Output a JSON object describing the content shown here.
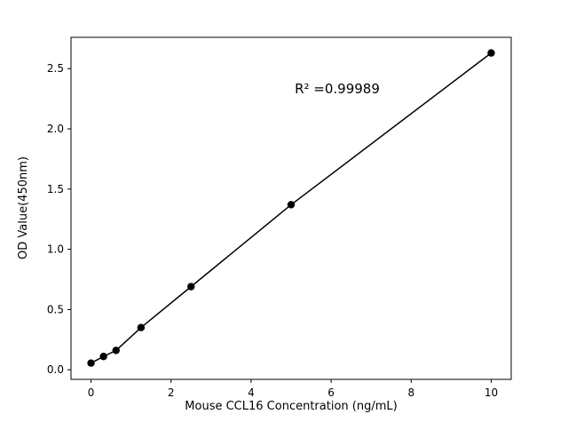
{
  "figure": {
    "background": "#ffffff"
  },
  "chart_data": {
    "type": "scatter",
    "x": [
      0,
      0.3125,
      0.625,
      1.25,
      2.5,
      5,
      10
    ],
    "y": [
      0.055,
      0.11,
      0.16,
      0.35,
      0.69,
      1.37,
      2.63
    ],
    "line": true,
    "line_color": "#000000",
    "marker_color": "#000000",
    "title": "",
    "xlabel": "Mouse CCL16 Concentration (ng/mL)",
    "ylabel": "OD Value(450nm)",
    "annotation": "R² =0.99989",
    "xlim": [
      -0.5,
      10.5
    ],
    "ylim": [
      -0.08,
      2.76
    ],
    "xticks": [
      0,
      2,
      4,
      6,
      8,
      10
    ],
    "ytick_values": [
      0.0,
      0.5,
      1.0,
      1.5,
      2.0,
      2.5
    ],
    "ytick_labels": [
      "0.0",
      "0.5",
      "1.0",
      "1.5",
      "2.0",
      "2.5"
    ],
    "grid": false,
    "legend": null
  }
}
